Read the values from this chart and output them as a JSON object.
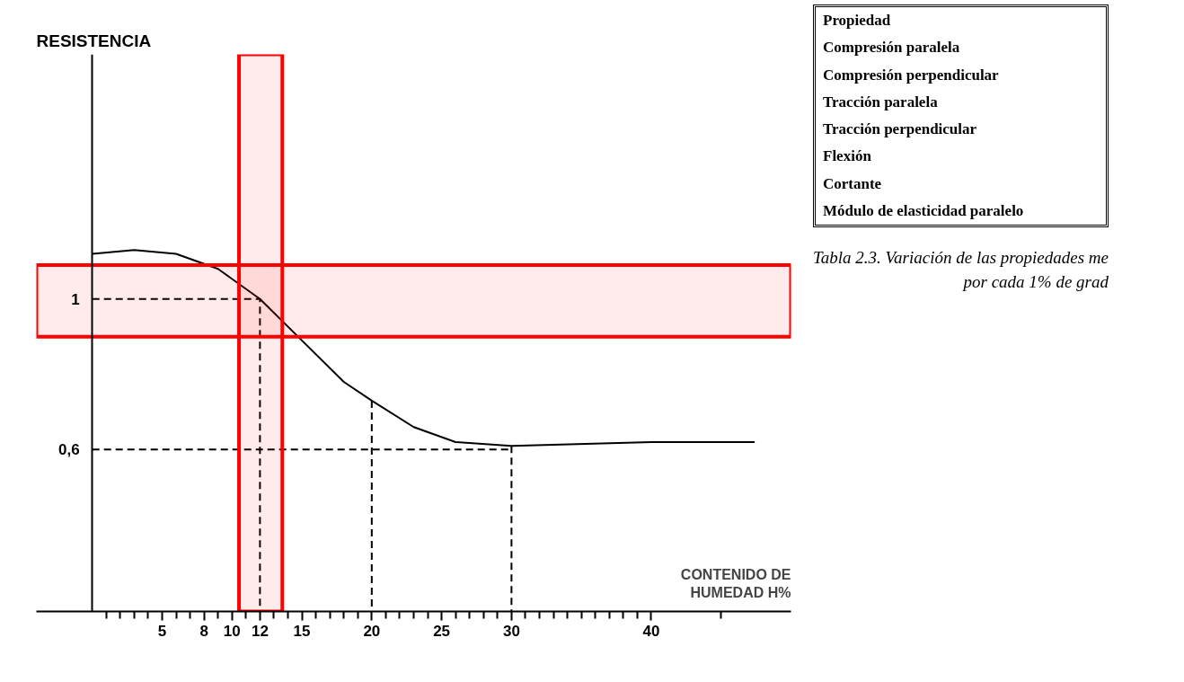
{
  "chart_data": {
    "type": "line",
    "ylabel": "RESISTENCIA",
    "xlabel": "CONTENIDO DE HUMEDAD H%",
    "xlim": [
      -4,
      50
    ],
    "ylim": [
      0.17,
      1.65
    ],
    "xticks": [
      {
        "value": 1,
        "label": null
      },
      {
        "value": 2,
        "label": null
      },
      {
        "value": 3,
        "label": null
      },
      {
        "value": 4,
        "label": null
      },
      5,
      {
        "value": 6,
        "label": null
      },
      {
        "value": 7,
        "label": null
      },
      8,
      {
        "value": 9,
        "label": null
      },
      10,
      {
        "value": 11,
        "label": null
      },
      12,
      {
        "value": 13,
        "label": null
      },
      {
        "value": 14,
        "label": null
      },
      15,
      {
        "value": 16,
        "label": null
      },
      {
        "value": 17,
        "label": null
      },
      {
        "value": 18,
        "label": null
      },
      {
        "value": 19,
        "label": null
      },
      20,
      {
        "value": 21,
        "label": null
      },
      {
        "value": 22,
        "label": null
      },
      {
        "value": 23,
        "label": null
      },
      {
        "value": 24,
        "label": null
      },
      25,
      {
        "value": 26,
        "label": null
      },
      {
        "value": 27,
        "label": null
      },
      {
        "value": 28,
        "label": null
      },
      {
        "value": 29,
        "label": null
      },
      30,
      {
        "value": 31,
        "label": null
      },
      {
        "value": 32,
        "label": null
      },
      {
        "value": 33,
        "label": null
      },
      {
        "value": 34,
        "label": null
      },
      {
        "value": 35,
        "label": null
      },
      {
        "value": 36,
        "label": null
      },
      {
        "value": 37,
        "label": null
      },
      {
        "value": 38,
        "label": null
      },
      {
        "value": 39,
        "label": null
      },
      40,
      {
        "value": 45,
        "label": null
      }
    ],
    "yticks": [
      {
        "value": 0.6,
        "label": "0,6"
      },
      1
    ],
    "grid": false,
    "marker": "none",
    "series": [
      {
        "color": "#000000",
        "line_style": "solid",
        "x": [
          0,
          3,
          6,
          9,
          12,
          15,
          18,
          20,
          23,
          26,
          30,
          40,
          47.4
        ],
        "values": [
          1.12,
          1.13,
          1.12,
          1.08,
          1.0,
          0.89,
          0.78,
          0.73,
          0.66,
          0.62,
          0.61,
          0.62,
          0.62
        ]
      },
      {
        "color": "#000000",
        "line_style": "dashed",
        "x": [
          0,
          12,
          12
        ],
        "values": [
          1,
          1,
          0.17
        ]
      },
      {
        "color": "#000000",
        "line_style": "dashed",
        "x": [
          0,
          30
        ],
        "values": [
          0.6,
          0.6
        ]
      },
      {
        "color": "#000000",
        "line_style": "dashed",
        "x": [
          20,
          20
        ],
        "values": [
          0.73,
          0.17
        ]
      },
      {
        "color": "#000000",
        "line_style": "dashed",
        "x": [
          30,
          30
        ],
        "values": [
          0.61,
          0.17
        ]
      }
    ],
    "bands": [
      {
        "axis": "x",
        "from": 10.5,
        "to": 13.6,
        "color": "#ff0000"
      },
      {
        "axis": "y",
        "from": 0.9,
        "to": 1.09,
        "color": "#ff0000"
      }
    ],
    "annotations": [
      "Propiedad",
      "Compresión paralela",
      "Compresión perpendicular",
      "Tracción paralela",
      "Tracción perpendicular",
      "Flexión",
      "Cortante",
      "Módulo de elasticidad paralelo",
      "Tabla 2.3. Variación de las propiedades me",
      "por cada 1% de grad"
    ]
  }
}
